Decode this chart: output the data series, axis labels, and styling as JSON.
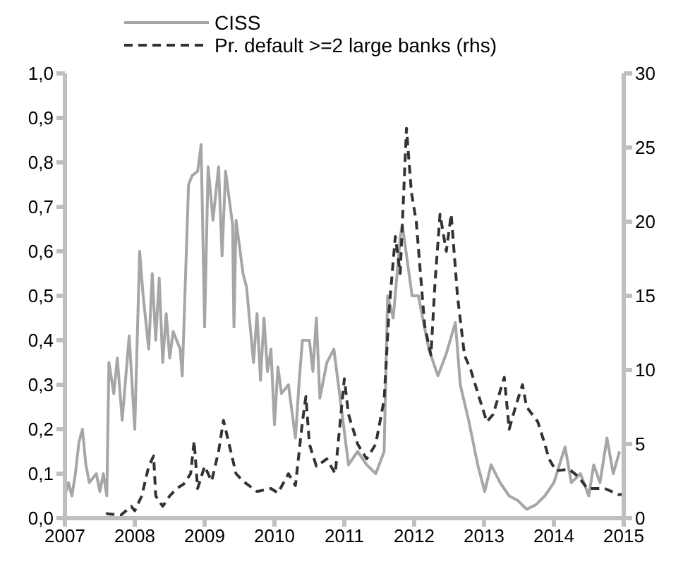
{
  "chart_data": {
    "type": "line",
    "legend": "top",
    "grid": false,
    "marker": "none",
    "xlim": [
      2007,
      2015
    ],
    "xticks": [
      2007,
      2008,
      2009,
      2010,
      2011,
      2012,
      2013,
      2014,
      2015
    ],
    "ylim": [
      0,
      1
    ],
    "yticks": [
      {
        "value": 0,
        "label": "0,0"
      },
      {
        "value": 0.1,
        "label": "0,1"
      },
      {
        "value": 0.2,
        "label": "0,2"
      },
      {
        "value": 0.3,
        "label": "0,3"
      },
      {
        "value": 0.4,
        "label": "0,4"
      },
      {
        "value": 0.5,
        "label": "0,5"
      },
      {
        "value": 0.6,
        "label": "0,6"
      },
      {
        "value": 0.7,
        "label": "0,7"
      },
      {
        "value": 0.8,
        "label": "0,8"
      },
      {
        "value": 0.9,
        "label": "0,9"
      },
      {
        "value": 1,
        "label": "1,0"
      }
    ],
    "y2lim": [
      0,
      30
    ],
    "y2ticks": [
      0,
      5,
      10,
      15,
      20,
      25,
      30
    ],
    "series": [
      {
        "name": "CISS",
        "color": "#a6a6a6",
        "line_style": "solid",
        "x": [
          2007.0,
          2007.05,
          2007.1,
          2007.15,
          2007.2,
          2007.25,
          2007.3,
          2007.35,
          2007.45,
          2007.5,
          2007.55,
          2007.6,
          2007.63,
          2007.7,
          2007.75,
          2007.82,
          2007.92,
          2008.0,
          2008.07,
          2008.12,
          2008.2,
          2008.25,
          2008.3,
          2008.35,
          2008.4,
          2008.45,
          2008.5,
          2008.55,
          2008.65,
          2008.68,
          2008.77,
          2008.82,
          2008.9,
          2008.95,
          2009.0,
          2009.05,
          2009.12,
          2009.2,
          2009.25,
          2009.3,
          2009.4,
          2009.42,
          2009.45,
          2009.55,
          2009.6,
          2009.7,
          2009.75,
          2009.8,
          2009.85,
          2009.9,
          2009.95,
          2010.0,
          2010.05,
          2010.1,
          2010.2,
          2010.3,
          2010.35,
          2010.4,
          2010.5,
          2010.55,
          2010.6,
          2010.65,
          2010.75,
          2010.85,
          2010.94,
          2011.06,
          2011.19,
          2011.32,
          2011.45,
          2011.57,
          2011.62,
          2011.7,
          2011.8,
          2011.83,
          2011.97,
          2012.06,
          2012.21,
          2012.34,
          2012.46,
          2012.59,
          2012.66,
          2012.78,
          2012.91,
          2013.01,
          2013.1,
          2013.23,
          2013.36,
          2013.48,
          2013.61,
          2013.74,
          2013.87,
          2014.0,
          2014.16,
          2014.25,
          2014.38,
          2014.5,
          2014.57,
          2014.66,
          2014.76,
          2014.85,
          2014.94
        ],
        "values": [
          0.05,
          0.08,
          0.05,
          0.1,
          0.17,
          0.2,
          0.12,
          0.08,
          0.1,
          0.06,
          0.1,
          0.05,
          0.35,
          0.28,
          0.36,
          0.22,
          0.41,
          0.2,
          0.6,
          0.5,
          0.38,
          0.55,
          0.4,
          0.54,
          0.35,
          0.46,
          0.36,
          0.42,
          0.38,
          0.32,
          0.75,
          0.77,
          0.78,
          0.84,
          0.43,
          0.79,
          0.67,
          0.79,
          0.59,
          0.78,
          0.66,
          0.43,
          0.67,
          0.55,
          0.52,
          0.35,
          0.46,
          0.31,
          0.45,
          0.33,
          0.38,
          0.21,
          0.34,
          0.28,
          0.3,
          0.18,
          0.3,
          0.4,
          0.4,
          0.33,
          0.45,
          0.27,
          0.35,
          0.38,
          0.27,
          0.12,
          0.15,
          0.12,
          0.1,
          0.15,
          0.5,
          0.45,
          0.63,
          0.66,
          0.5,
          0.5,
          0.38,
          0.32,
          0.37,
          0.44,
          0.3,
          0.22,
          0.12,
          0.06,
          0.12,
          0.08,
          0.05,
          0.04,
          0.02,
          0.03,
          0.05,
          0.08,
          0.16,
          0.08,
          0.1,
          0.05,
          0.12,
          0.08,
          0.18,
          0.1,
          0.15
        ]
      },
      {
        "name": "Pr. default >=2 large banks (rhs)",
        "color": "#333333",
        "line_style": "dashed",
        "axis": "y2",
        "x": [
          2007.0,
          2007.5,
          2007.6,
          2007.8,
          2007.95,
          2008.0,
          2008.1,
          2008.2,
          2008.27,
          2008.3,
          2008.4,
          2008.5,
          2008.6,
          2008.7,
          2008.8,
          2008.85,
          2008.9,
          2009.0,
          2009.1,
          2009.2,
          2009.27,
          2009.35,
          2009.45,
          2009.55,
          2009.75,
          2009.95,
          2010.05,
          2010.2,
          2010.3,
          2010.4,
          2010.45,
          2010.5,
          2010.6,
          2010.75,
          2010.87,
          2011.0,
          2011.06,
          2011.19,
          2011.32,
          2011.45,
          2011.57,
          2011.64,
          2011.73,
          2011.8,
          2011.89,
          2011.96,
          2012.03,
          2012.15,
          2012.24,
          2012.3,
          2012.37,
          2012.46,
          2012.53,
          2012.62,
          2012.72,
          2012.81,
          2012.94,
          2013.04,
          2013.13,
          2013.29,
          2013.36,
          2013.45,
          2013.55,
          2013.61,
          2013.77,
          2013.87,
          2013.93,
          2014.03,
          2014.22,
          2014.35,
          2014.48,
          2014.61,
          2014.73,
          2014.92,
          2015.0
        ],
        "values": [
          0,
          0,
          0.3,
          0.2,
          0.8,
          0.5,
          1.5,
          3.5,
          4.2,
          1.5,
          0.8,
          1.5,
          2.0,
          2.3,
          3.0,
          5.2,
          2.0,
          3.5,
          2.5,
          4.5,
          6.6,
          5.0,
          3.0,
          2.5,
          1.8,
          2.0,
          1.7,
          3.0,
          2.2,
          6.5,
          8.2,
          5.0,
          3.5,
          4.0,
          3.0,
          9.4,
          7.0,
          5.0,
          4.0,
          5.0,
          8.0,
          14,
          19,
          16.5,
          26.3,
          22,
          20,
          13,
          11,
          16,
          20.5,
          18,
          20.5,
          15,
          11,
          10,
          8,
          6.5,
          7.0,
          9.5,
          6.0,
          7.5,
          9.0,
          7.5,
          6.5,
          5.0,
          4.0,
          3.2,
          3.3,
          2.8,
          2.0,
          2.0,
          2.0,
          1.6,
          1.6
        ]
      }
    ]
  }
}
